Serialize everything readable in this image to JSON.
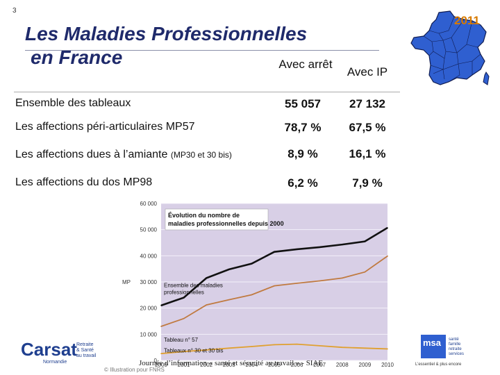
{
  "slide_number": "3",
  "title_line1": "Les Maladies Professionnelles",
  "title_line2": "en France",
  "year": "2011",
  "table": {
    "col1": "Avec arrêt",
    "col2": "Avec IP",
    "rows": [
      {
        "label": "Ensemble des tableaux",
        "sub": "",
        "v1": "55 057",
        "v2": "27 132"
      },
      {
        "label": "Les affections péri-articulaires MP57",
        "sub": "",
        "v1": "78,7 %",
        "v2": "67,5 %"
      },
      {
        "label": "Les affections dues à l’amiante",
        "sub": "(MP30 et 30 bis)",
        "v1": "8,9 %",
        "v2": "16,1 %"
      },
      {
        "label": "Les affections du dos MP98",
        "sub": "",
        "v1": "6,2 %",
        "v2": "7,9 %"
      }
    ]
  },
  "chart_data": {
    "type": "line",
    "title": "Évolution du nombre de maladies professionnelles depuis 2000",
    "ylabel": "MP",
    "ylim": [
      0,
      60000
    ],
    "yticks": [
      "0",
      "10 000",
      "20 000",
      "30 000",
      "40 000",
      "50 000",
      "60 000"
    ],
    "x": [
      "2000",
      "2001",
      "2002",
      "2003",
      "2004",
      "2005",
      "2006",
      "2007",
      "2008",
      "2009",
      "2010"
    ],
    "series": [
      {
        "name": "Ensemble des maladies professionnelles",
        "color": "#111111",
        "values": [
          21000,
          24000,
          31500,
          34800,
          37000,
          41500,
          42500,
          43300,
          44300,
          45500,
          50700
        ]
      },
      {
        "name": "Tableau n° 57",
        "color": "#c07a40",
        "values": [
          13000,
          16000,
          21200,
          23200,
          25100,
          28500,
          29500,
          30400,
          31500,
          33800,
          39900
        ]
      },
      {
        "name": "Tableaux n° 30 et 30 bis",
        "color": "#e0a030",
        "values": [
          2600,
          3400,
          4000,
          4700,
          5300,
          6000,
          6200,
          5600,
          5000,
          4700,
          4400
        ]
      }
    ],
    "grid": true,
    "background": "#d8cfe6"
  },
  "footer_note": "Journée d’information « santé et sécurité au travail » - SIAE",
  "logos": {
    "carsat_name": "Carsat",
    "carsat_tag1": "Retraite",
    "carsat_tag2": "& Santé",
    "carsat_tag3": "au travail",
    "carsat_region": "Normandie",
    "msa_name": "msa",
    "msa_tag1": "santé",
    "msa_tag2": "famille",
    "msa_tag3": "retraite",
    "msa_tag4": "services",
    "msa_slogan": "L’essentiel & plus encore"
  },
  "credit": "© Illustration pour FNRS"
}
